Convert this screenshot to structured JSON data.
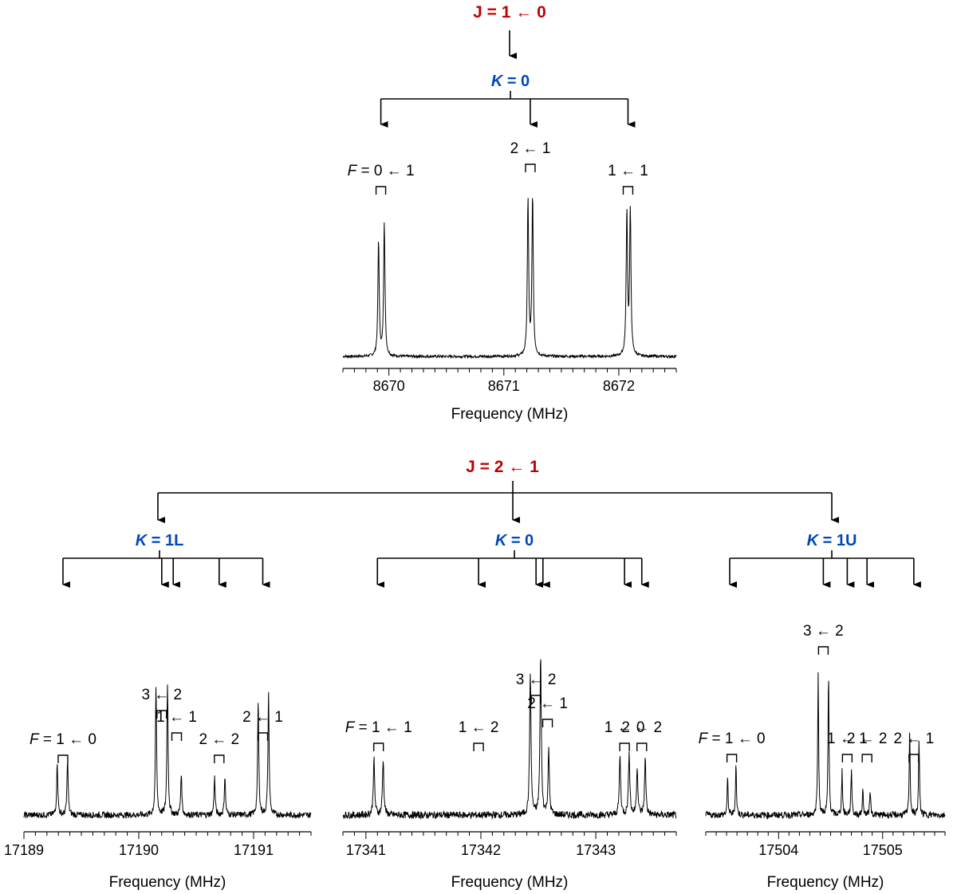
{
  "figure": {
    "j_top": {
      "text": "J = 1 ← 0",
      "color": "#c00000"
    },
    "j_bottom": {
      "text": "J = 2 ← 1",
      "color": "#c00000"
    },
    "k_color": "#0047bb"
  },
  "chart_data": [
    {
      "type": "line",
      "k_label": "K = 0",
      "xlabel": "Frequency (MHz)",
      "xlim": [
        8669.6,
        8672.5
      ],
      "xticks": [
        8670,
        8671,
        8672
      ],
      "minor_step": 0.1,
      "peaks": [
        {
          "x": 8669.91,
          "h": 0.72
        },
        {
          "x": 8669.96,
          "h": 0.84
        },
        {
          "x": 8671.21,
          "h": 0.98
        },
        {
          "x": 8671.25,
          "h": 1.0
        },
        {
          "x": 8672.07,
          "h": 0.9
        },
        {
          "x": 8672.1,
          "h": 0.9
        }
      ],
      "labels": [
        {
          "text": "F = 0 ← 1",
          "x": 8669.93,
          "level": 0.0,
          "italic_prefix": "F"
        },
        {
          "text": "2 ← 1",
          "x": 8671.23,
          "level": 1.0
        },
        {
          "text": "1 ← 1",
          "x": 8672.08,
          "level": 0.0
        }
      ]
    },
    {
      "type": "line",
      "k_label": "K = 1L",
      "xlabel": "Frequency (MHz)",
      "xlim": [
        17189.0,
        17191.5
      ],
      "xticks": [
        17189,
        17190,
        17191
      ],
      "minor_step": 0.1,
      "peaks": [
        {
          "x": 17189.29,
          "h": 0.38
        },
        {
          "x": 17189.38,
          "h": 0.4
        },
        {
          "x": 17190.15,
          "h": 0.92
        },
        {
          "x": 17190.25,
          "h": 0.95
        },
        {
          "x": 17190.37,
          "h": 0.3
        },
        {
          "x": 17190.66,
          "h": 0.27
        },
        {
          "x": 17190.75,
          "h": 0.28
        },
        {
          "x": 17191.04,
          "h": 0.82
        },
        {
          "x": 17191.13,
          "h": 0.87
        }
      ],
      "labels": [
        {
          "text": "F = 1 ← 0",
          "x": 17189.34,
          "level": 0.0,
          "italic_prefix": "F"
        },
        {
          "text": "3 ← 2",
          "x": 17190.2,
          "level": 2.0
        },
        {
          "text": "1 ← 1",
          "x": 17190.33,
          "level": 1.0
        },
        {
          "text": "2 ← 2",
          "x": 17190.7,
          "level": 0.0
        },
        {
          "text": "2 ← 1",
          "x": 17191.08,
          "level": 1.0
        }
      ],
      "arrows": [
        17189.34,
        17190.2,
        17190.3,
        17190.7,
        17191.08
      ]
    },
    {
      "type": "line",
      "k_label": "K = 0",
      "xlabel": "Frequency (MHz)",
      "xlim": [
        17340.8,
        17343.7
      ],
      "xticks": [
        17341,
        17342,
        17343
      ],
      "minor_step": 0.1,
      "peaks": [
        {
          "x": 17341.07,
          "h": 0.35
        },
        {
          "x": 17341.15,
          "h": 0.35
        },
        {
          "x": 17342.43,
          "h": 0.9
        },
        {
          "x": 17342.52,
          "h": 1.0
        },
        {
          "x": 17342.59,
          "h": 0.4
        },
        {
          "x": 17343.21,
          "h": 0.37
        },
        {
          "x": 17343.29,
          "h": 0.4
        },
        {
          "x": 17343.36,
          "h": 0.3
        },
        {
          "x": 17343.43,
          "h": 0.35
        }
      ],
      "labels": [
        {
          "text": "F = 1 ← 1",
          "x": 17341.11,
          "level": 0.0,
          "italic_prefix": "F"
        },
        {
          "text": "1 ← 2",
          "x": 17341.98,
          "level": 0.0
        },
        {
          "text": "3 ← 2",
          "x": 17342.48,
          "level": 2.0
        },
        {
          "text": "2 ← 1",
          "x": 17342.58,
          "level": 1.0
        },
        {
          "text": "1 ← 0",
          "x": 17343.25,
          "level": 0.0
        },
        {
          "text": "2 ← 2",
          "x": 17343.4,
          "level": 0.0
        }
      ],
      "arrows": [
        17341.1,
        17341.98,
        17342.48,
        17342.54,
        17343.25,
        17343.4
      ]
    },
    {
      "type": "line",
      "k_label": "K = 1U",
      "xlabel": "Frequency (MHz)",
      "xlim": [
        17503.3,
        17505.6
      ],
      "xticks": [
        17504,
        17505
      ],
      "minor_step": 0.1,
      "peaks": [
        {
          "x": 17503.51,
          "h": 0.25
        },
        {
          "x": 17503.59,
          "h": 0.35
        },
        {
          "x": 17504.38,
          "h": 0.95
        },
        {
          "x": 17504.48,
          "h": 0.95
        },
        {
          "x": 17504.61,
          "h": 0.3
        },
        {
          "x": 17504.7,
          "h": 0.32
        },
        {
          "x": 17504.81,
          "h": 0.17
        },
        {
          "x": 17504.88,
          "h": 0.18
        },
        {
          "x": 17505.26,
          "h": 0.58
        },
        {
          "x": 17505.35,
          "h": 0.5
        }
      ],
      "labels": [
        {
          "text": "F = 1 ← 0",
          "x": 17503.55,
          "level": 0.0,
          "italic_prefix": "F"
        },
        {
          "text": "3 ← 2",
          "x": 17504.43,
          "level": 1.0
        },
        {
          "text": "1 ← 1",
          "x": 17504.66,
          "level": 0.0
        },
        {
          "text": "2 ← 2",
          "x": 17504.85,
          "level": 0.0
        },
        {
          "text": "2 ← 1",
          "x": 17505.3,
          "level": 0.0
        }
      ],
      "arrows": [
        17503.53,
        17504.43,
        17504.66,
        17504.85,
        17505.3
      ]
    }
  ]
}
